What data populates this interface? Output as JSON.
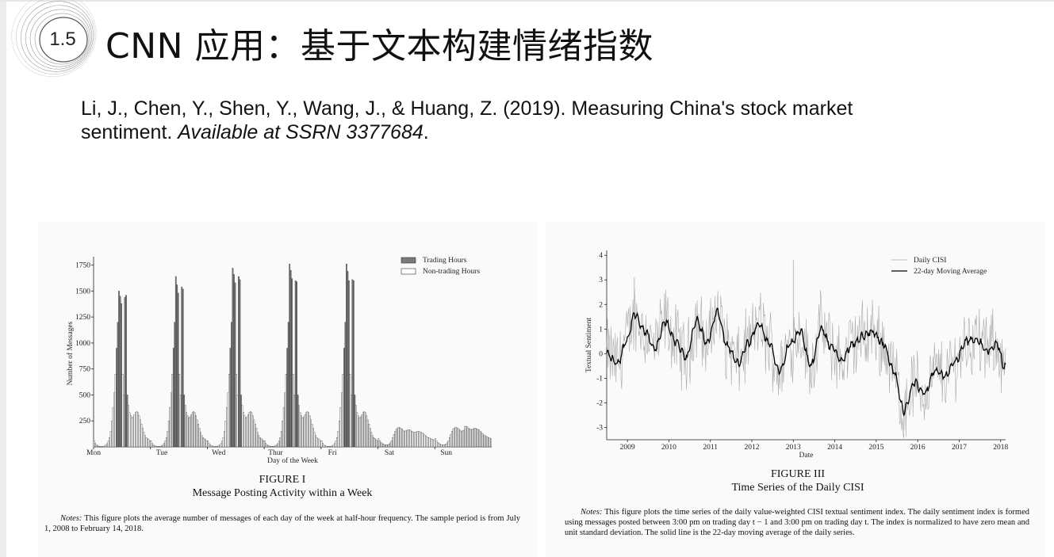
{
  "slide": {
    "section_number": "1.5",
    "title": "CNN 应用：基于文本构建情绪指数"
  },
  "citation": {
    "text": "Li, J., Chen, Y., Shen, Y., Wang, J., & Huang, Z. (2019). Measuring China's stock market sentiment. ",
    "italic": "Available at SSRN 3377684",
    "end": "."
  },
  "figure1": {
    "label": "FIGURE I",
    "caption": "Message Posting Activity within a Week",
    "notes_lead": "Notes:",
    "notes": " This figure plots the average number of messages of each day of the week at half-hour frequency. The sample period is from July 1, 2008 to February 14, 2018."
  },
  "figure3": {
    "label": "FIGURE III",
    "caption": "Time Series of the Daily CISI",
    "notes_lead": "Notes:",
    "notes": " This figure plots the time series of the daily value-weighted CISI textual sentiment index. The daily sentiment index is formed using messages posted between 3:00 pm on trading day t − 1 and 3:00 pm on trading day t. The index is normalized to have zero mean and unit standard deviation. The solid line is the 22-day moving average of the daily series."
  },
  "chart_data": [
    {
      "type": "bar",
      "xlabel": "Day of the Week",
      "ylabel": "Number of Messages",
      "ylim": [
        0,
        1800
      ],
      "yticks": [
        250,
        500,
        750,
        1000,
        1250,
        1500,
        1750
      ],
      "xticks": [
        "Mon",
        "Tue",
        "Wed",
        "Thur",
        "Fri",
        "Sat",
        "Sun"
      ],
      "bins_per_day": 48,
      "legend_position": "top-right",
      "series": [
        {
          "name": "Trading Hours",
          "color": "#7a7a7a"
        },
        {
          "name": "Non-trading Hours",
          "color": "#ffffff"
        }
      ],
      "weekday_profile": [
        60,
        35,
        20,
        12,
        8,
        6,
        5,
        5,
        6,
        10,
        18,
        32,
        55,
        90,
        150,
        250,
        380,
        520,
        700,
        950,
        1200,
        1500,
        1450,
        1380,
        700,
        500,
        1400,
        1440,
        500,
        400,
        330,
        300,
        280,
        290,
        310,
        330,
        340,
        330,
        300,
        260,
        220,
        180,
        140,
        110,
        90,
        80,
        70,
        60
      ],
      "weekday_peaks": [
        [
          1500,
          1450,
          1380,
          1440,
          1460
        ],
        [
          1640,
          1560,
          1480,
          1540,
          1520
        ],
        [
          1720,
          1660,
          1580,
          1640,
          1610
        ],
        [
          1760,
          1700,
          1620,
          1600,
          1590
        ],
        [
          1760,
          1690,
          1600,
          1610,
          1600
        ]
      ],
      "weekend_profile": [
        80,
        60,
        45,
        35,
        28,
        22,
        20,
        20,
        22,
        28,
        40,
        60,
        90,
        120,
        150,
        170,
        180,
        190,
        185,
        180,
        170,
        160,
        150,
        155,
        160,
        165,
        165,
        160,
        150,
        145,
        140,
        140,
        145,
        150,
        150,
        145,
        140,
        135,
        125,
        115,
        105,
        95,
        90,
        85,
        80,
        75,
        70,
        65
      ],
      "sunday_tail_boost": 1.2
    },
    {
      "type": "line",
      "xlabel": "Date",
      "ylabel": "Textual Sentiment",
      "ylim": [
        -3.5,
        4.2
      ],
      "yticks": [
        -3,
        -2,
        -1,
        0,
        1,
        2,
        3,
        4
      ],
      "xticks": [
        "2009",
        "2010",
        "2011",
        "2012",
        "2013",
        "2014",
        "2015",
        "2016",
        "2017",
        "2018"
      ],
      "legend_position": "top-right",
      "series": [
        {
          "name": "Daily CISI",
          "color": "#aaaaaa"
        },
        {
          "name": "22-day Moving Average",
          "color": "#000000"
        }
      ],
      "moving_average_anchors": [
        [
          "2008-07",
          0.0
        ],
        [
          "2008-10",
          -0.4
        ],
        [
          "2009-01",
          0.6
        ],
        [
          "2009-03",
          1.6
        ],
        [
          "2009-06",
          0.9
        ],
        [
          "2009-09",
          0.2
        ],
        [
          "2009-12",
          1.3
        ],
        [
          "2010-03",
          0.5
        ],
        [
          "2010-06",
          -0.2
        ],
        [
          "2010-09",
          1.4
        ],
        [
          "2010-12",
          0.4
        ],
        [
          "2011-03",
          1.7
        ],
        [
          "2011-06",
          0.3
        ],
        [
          "2011-09",
          -0.4
        ],
        [
          "2011-12",
          0.4
        ],
        [
          "2012-03",
          1.2
        ],
        [
          "2012-06",
          0.4
        ],
        [
          "2012-09",
          -0.7
        ],
        [
          "2012-12",
          0.4
        ],
        [
          "2013-03",
          0.9
        ],
        [
          "2013-06",
          -0.5
        ],
        [
          "2013-09",
          1.0
        ],
        [
          "2013-12",
          0.3
        ],
        [
          "2014-03",
          -0.3
        ],
        [
          "2014-06",
          0.4
        ],
        [
          "2014-09",
          0.7
        ],
        [
          "2014-12",
          0.9
        ],
        [
          "2015-03",
          0.4
        ],
        [
          "2015-06",
          -0.7
        ],
        [
          "2015-09",
          -2.3
        ],
        [
          "2015-12",
          -1.2
        ],
        [
          "2016-03",
          -1.6
        ],
        [
          "2016-06",
          -0.7
        ],
        [
          "2016-09",
          -0.9
        ],
        [
          "2016-12",
          -0.3
        ],
        [
          "2017-03",
          0.5
        ],
        [
          "2017-06",
          0.6
        ],
        [
          "2017-09",
          0.1
        ],
        [
          "2017-12",
          0.4
        ],
        [
          "2018-02",
          -0.5
        ]
      ],
      "daily_spikes": [
        [
          "2013-01",
          3.8
        ],
        [
          "2009-03",
          3.1
        ],
        [
          "2015-09",
          -3.1
        ]
      ]
    }
  ]
}
